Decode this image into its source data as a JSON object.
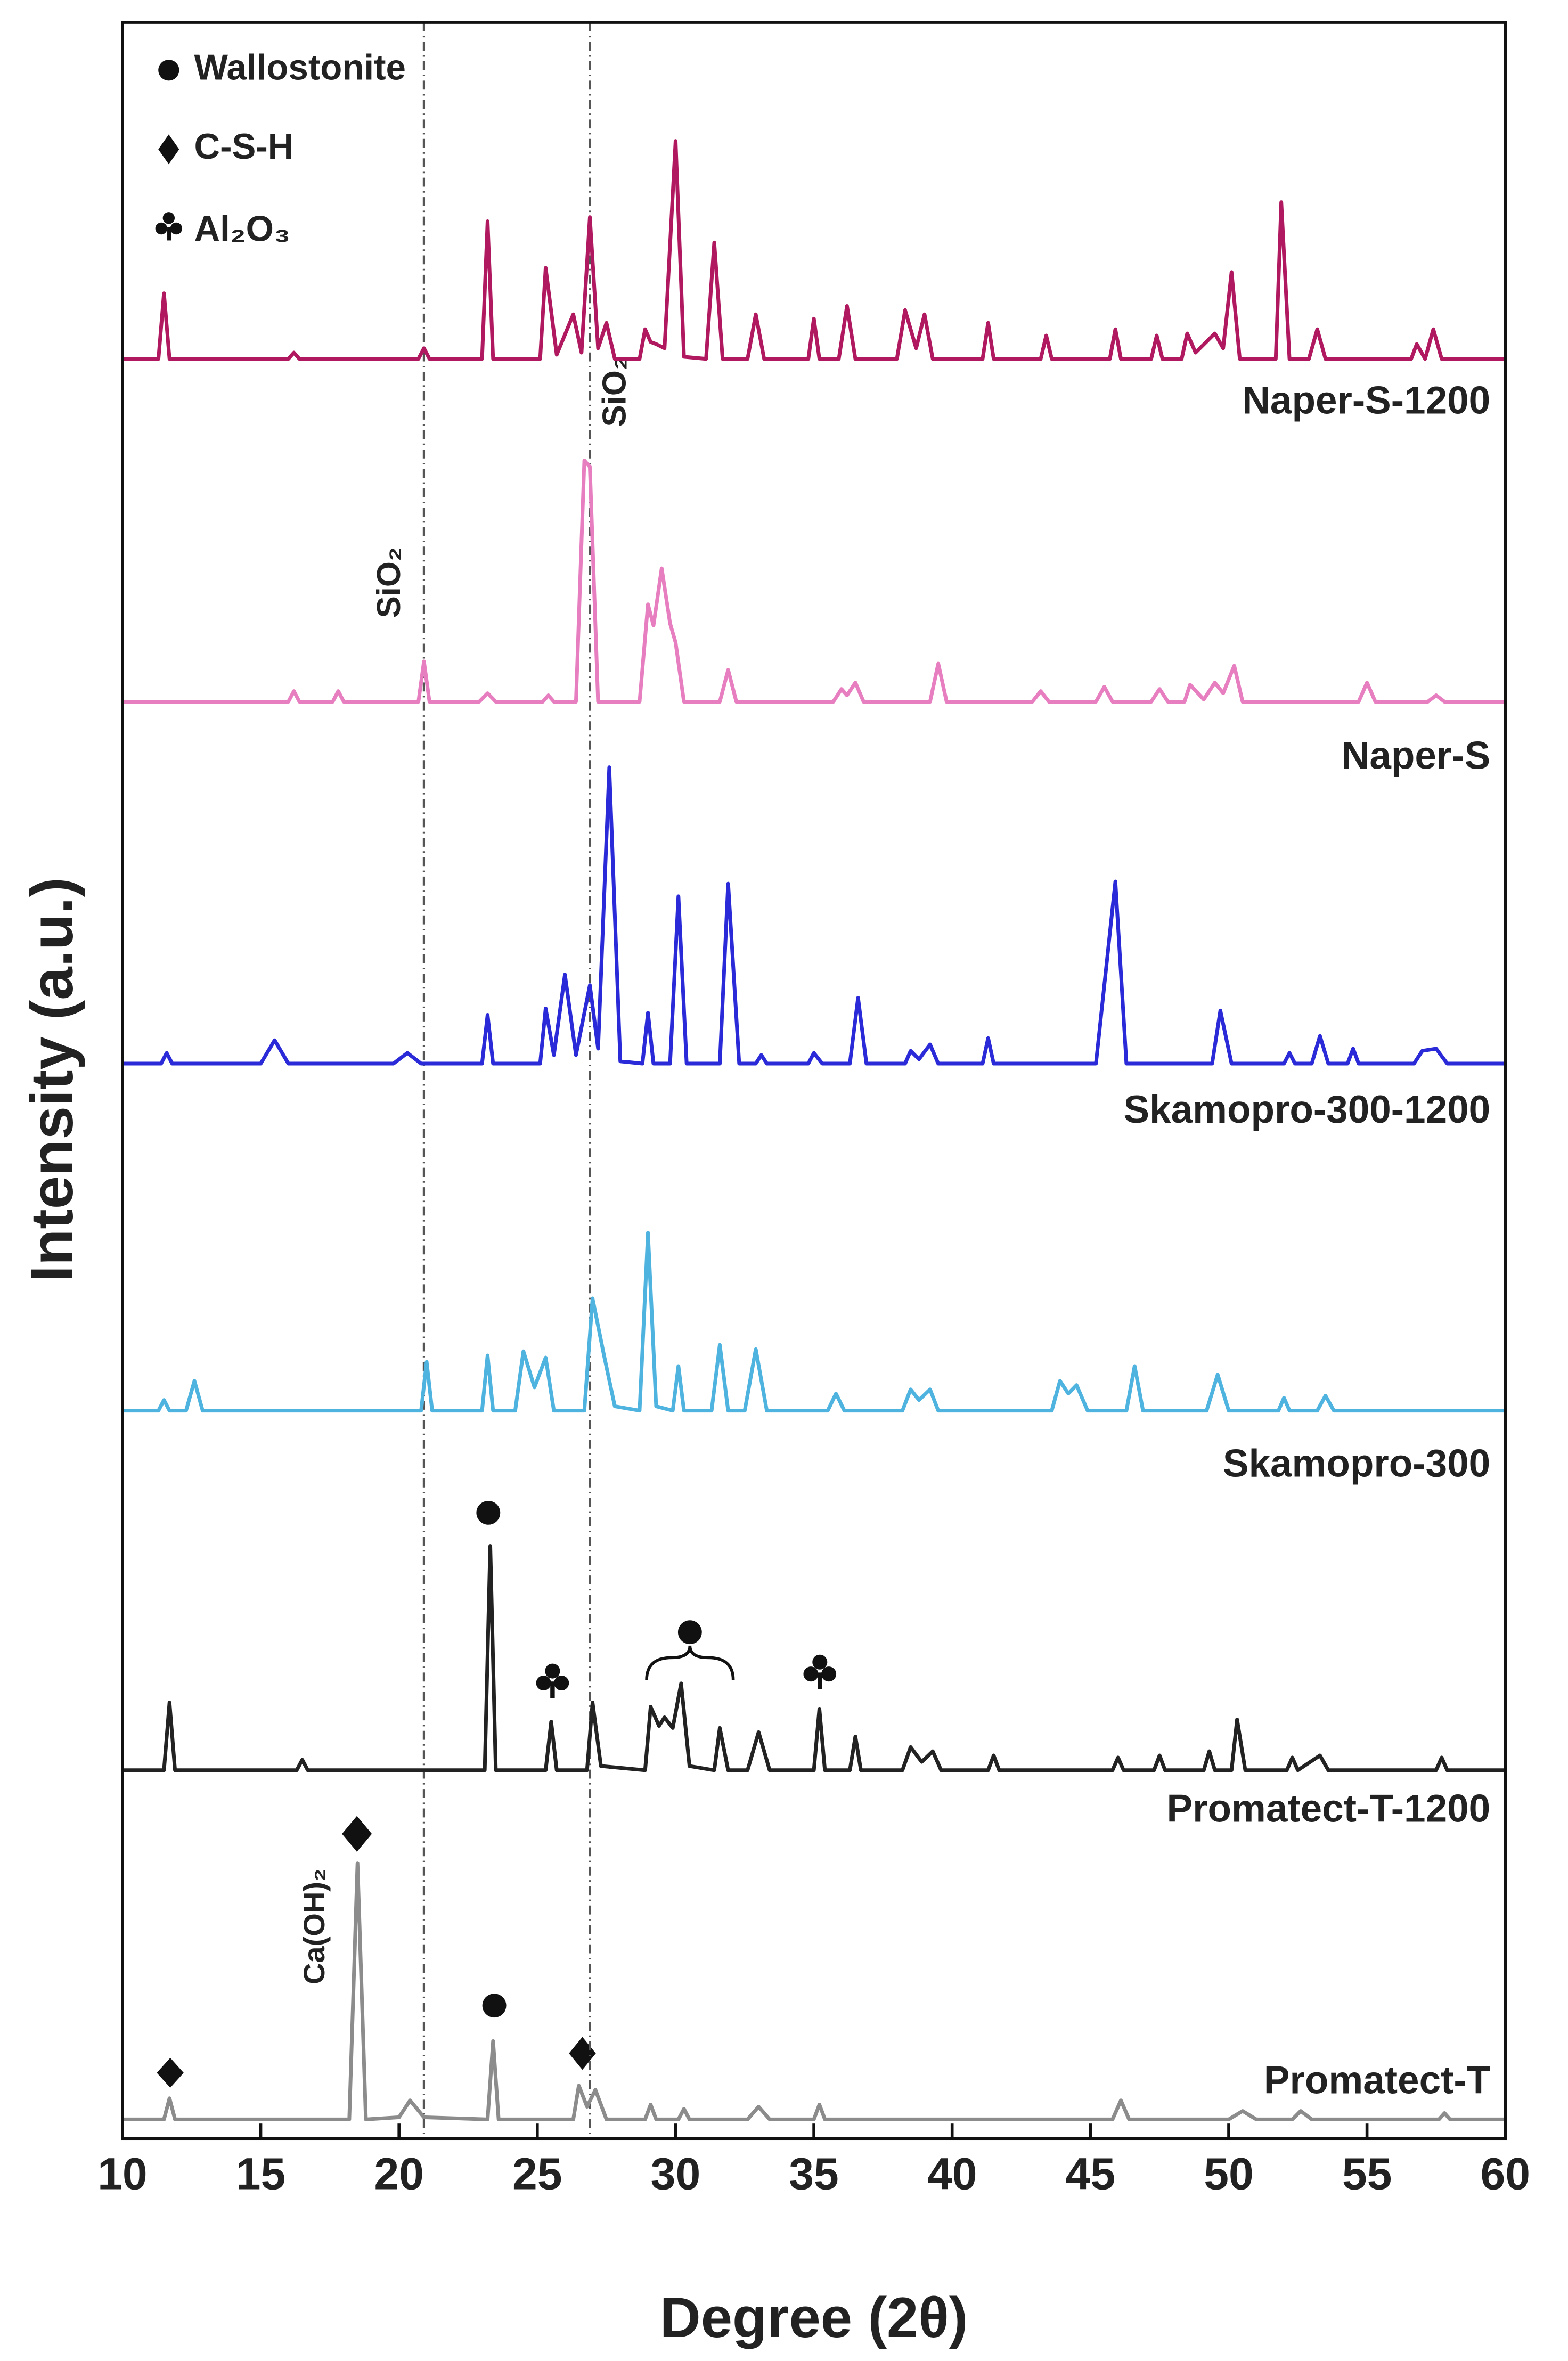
{
  "chart_data": {
    "type": "line",
    "xlabel": "Degree (2θ)",
    "ylabel": "Intensity (a.u.)",
    "xlim": [
      10,
      60
    ],
    "xticks": [
      10,
      15,
      20,
      25,
      30,
      35,
      40,
      45,
      50,
      55,
      60
    ],
    "ylim": [
      0,
      100
    ],
    "vlines": [
      20.9,
      26.9
    ],
    "phase_legend": [
      "Wallostonite",
      "C-S-H",
      "Al₂O₃"
    ],
    "annotations": [
      "SiO₂",
      "SiO₂",
      "Ca(OH)₂"
    ],
    "series": [
      {
        "name": "Naper-S-1200",
        "color": "#b0195f",
        "x": [
          10,
          11.3,
          11.5,
          11.7,
          16,
          16.2,
          16.4,
          20.7,
          20.9,
          21.1,
          23,
          23.2,
          23.4,
          25.1,
          25.3,
          25.7,
          26.3,
          26.6,
          26.9,
          27.2,
          27.5,
          27.8,
          28.7,
          28.9,
          29.1,
          29.3,
          29.6,
          30,
          30.3,
          31.1,
          31.4,
          31.7,
          32.6,
          32.9,
          33.2,
          34.8,
          35,
          35.2,
          35.9,
          36.2,
          36.5,
          38,
          38.3,
          38.7,
          39,
          39.3,
          41.1,
          41.3,
          41.5,
          43.2,
          43.4,
          43.6,
          45.7,
          45.9,
          46.1,
          47.2,
          47.4,
          47.6,
          48.3,
          48.5,
          48.8,
          49.5,
          49.8,
          50.1,
          50.4,
          51.7,
          51.9,
          52.2,
          52.9,
          53.2,
          53.5,
          56.6,
          56.8,
          57.1,
          57.4,
          57.7,
          60
        ],
        "values": [
          84.1,
          84.1,
          87.2,
          84.1,
          84.1,
          84.4,
          84.1,
          84.1,
          84.6,
          84.1,
          84.1,
          90.6,
          84.1,
          84.1,
          88.4,
          84.3,
          86.2,
          84.4,
          90.8,
          84.6,
          85.8,
          84.1,
          84.1,
          85.5,
          84.9,
          84.8,
          84.6,
          94.4,
          84.2,
          84.1,
          89.6,
          84.1,
          84.1,
          86.2,
          84.1,
          84.1,
          86.0,
          84.1,
          84.1,
          86.6,
          84.1,
          84.1,
          86.4,
          84.6,
          86.2,
          84.1,
          84.1,
          85.8,
          84.1,
          84.1,
          85.2,
          84.1,
          84.1,
          85.5,
          84.1,
          84.1,
          85.2,
          84.1,
          84.1,
          85.3,
          84.4,
          85.3,
          84.6,
          88.2,
          84.1,
          84.1,
          91.5,
          84.1,
          84.1,
          85.5,
          84.1,
          84.1,
          84.8,
          84.1,
          85.5,
          84.1,
          84.1
        ]
      },
      {
        "name": "Naper-S",
        "color": "#e77ec0",
        "x": [
          10,
          16,
          16.2,
          16.4,
          17.6,
          17.8,
          18,
          20.7,
          20.9,
          21.1,
          22.9,
          23.2,
          23.5,
          25.2,
          25.4,
          25.6,
          26.4,
          26.7,
          26.9,
          27.2,
          28.7,
          29,
          29.2,
          29.5,
          29.8,
          30,
          30.3,
          31.6,
          31.9,
          32.2,
          35.7,
          36,
          36.2,
          36.5,
          36.8,
          39.2,
          39.5,
          39.8,
          42.9,
          43.2,
          43.5,
          45.2,
          45.5,
          45.8,
          47.2,
          47.5,
          47.8,
          48.4,
          48.6,
          49.1,
          49.5,
          49.8,
          50.2,
          50.5,
          54.7,
          55,
          55.3,
          57.2,
          57.5,
          57.8,
          60
        ],
        "values": [
          67.9,
          67.9,
          68.4,
          67.9,
          67.9,
          68.4,
          67.9,
          67.9,
          69.8,
          67.9,
          67.9,
          68.3,
          67.9,
          67.9,
          68.2,
          67.9,
          67.9,
          79.3,
          79.0,
          67.9,
          67.9,
          72.5,
          71.5,
          74.2,
          71.6,
          70.7,
          67.9,
          67.9,
          69.4,
          67.9,
          67.9,
          68.5,
          68.2,
          68.8,
          67.9,
          67.9,
          69.7,
          67.9,
          67.9,
          68.4,
          67.9,
          67.9,
          68.6,
          67.9,
          67.9,
          68.5,
          67.9,
          67.9,
          68.7,
          68.0,
          68.8,
          68.3,
          69.6,
          67.9,
          67.9,
          68.8,
          67.9,
          67.9,
          68.2,
          67.9,
          67.9
        ]
      },
      {
        "name": "Skamopro-300-1200",
        "color": "#2a2ad8",
        "x": [
          10,
          11.4,
          11.6,
          11.8,
          15,
          15.5,
          16,
          19.8,
          20.3,
          20.8,
          23,
          23.2,
          23.4,
          25.1,
          25.3,
          25.6,
          26,
          26.4,
          26.9,
          27.2,
          27.6,
          28,
          28.8,
          29,
          29.2,
          29.8,
          30.1,
          30.4,
          31.6,
          31.9,
          32.3,
          32.9,
          33.1,
          33.3,
          34.8,
          35,
          35.3,
          36.3,
          36.6,
          36.9,
          38.3,
          38.5,
          38.8,
          39.2,
          39.5,
          41.1,
          41.3,
          41.5,
          45.2,
          45.5,
          45.9,
          46.3,
          49.4,
          49.7,
          50.1,
          52,
          52.2,
          52.4,
          53,
          53.3,
          53.6,
          54.3,
          54.5,
          54.7,
          56.7,
          57,
          57.5,
          57.9,
          60
        ],
        "values": [
          50.8,
          50.8,
          51.3,
          50.8,
          50.8,
          51.9,
          50.8,
          50.8,
          51.3,
          50.8,
          50.8,
          53.1,
          50.8,
          50.8,
          53.4,
          51.2,
          55.0,
          51.2,
          54.5,
          51.5,
          64.8,
          50.9,
          50.8,
          53.2,
          50.8,
          50.8,
          58.7,
          50.8,
          50.8,
          59.3,
          50.8,
          50.8,
          51.2,
          50.8,
          50.8,
          51.3,
          50.8,
          50.8,
          53.9,
          50.8,
          50.8,
          51.4,
          51.0,
          51.7,
          50.8,
          50.8,
          52.0,
          50.8,
          50.8,
          54.5,
          59.4,
          50.8,
          50.8,
          53.3,
          50.8,
          50.8,
          51.3,
          50.8,
          50.8,
          52.1,
          50.8,
          50.8,
          51.5,
          50.8,
          50.8,
          51.4,
          51.5,
          50.8,
          50.8
        ]
      },
      {
        "name": "Skamopro-300",
        "color": "#4fb3e0",
        "x": [
          10,
          11.3,
          11.5,
          11.7,
          12.3,
          12.6,
          12.9,
          20.8,
          21,
          21.2,
          23,
          23.2,
          23.4,
          24.2,
          24.5,
          24.9,
          25.3,
          25.6,
          26.7,
          27,
          27.4,
          27.8,
          28.7,
          29,
          29.3,
          29.9,
          30.1,
          30.3,
          31.3,
          31.6,
          31.9,
          32.5,
          32.9,
          33.3,
          35.5,
          35.8,
          36.1,
          38.2,
          38.5,
          38.8,
          39.2,
          39.5,
          43.6,
          43.9,
          44.2,
          44.5,
          44.9,
          46.3,
          46.6,
          46.9,
          49.2,
          49.6,
          50,
          51.8,
          52,
          52.2,
          53.2,
          53.5,
          53.8,
          60
        ],
        "values": [
          34.4,
          34.4,
          34.9,
          34.4,
          34.4,
          35.8,
          34.4,
          34.4,
          36.7,
          34.4,
          34.4,
          37.0,
          34.4,
          34.4,
          37.2,
          35.5,
          36.9,
          34.4,
          34.4,
          39.7,
          37.1,
          34.6,
          34.4,
          42.8,
          34.6,
          34.4,
          36.5,
          34.4,
          34.4,
          37.5,
          34.4,
          34.4,
          37.3,
          34.4,
          34.4,
          35.2,
          34.4,
          34.4,
          35.4,
          34.9,
          35.4,
          34.4,
          34.4,
          35.8,
          35.2,
          35.6,
          34.4,
          34.4,
          36.5,
          34.4,
          34.4,
          36.1,
          34.4,
          34.4,
          35.0,
          34.4,
          34.4,
          35.1,
          34.4,
          34.4
        ]
      },
      {
        "name": "Promatect-T-1200",
        "color": "#222222",
        "x": [
          10,
          11.5,
          11.7,
          11.9,
          16.3,
          16.5,
          16.7,
          23.1,
          23.3,
          23.5,
          25.3,
          25.5,
          25.7,
          26.8,
          27,
          27.3,
          28.9,
          29.1,
          29.4,
          29.6,
          29.9,
          30.2,
          30.5,
          31.4,
          31.6,
          31.9,
          32.6,
          33,
          33.4,
          35,
          35.2,
          35.4,
          36.3,
          36.5,
          36.7,
          38.2,
          38.5,
          38.9,
          39.3,
          39.6,
          41.3,
          41.5,
          41.7,
          45.8,
          46,
          46.2,
          47.3,
          47.5,
          47.7,
          49.1,
          49.3,
          49.5,
          50.1,
          50.3,
          50.6,
          52.1,
          52.3,
          52.5,
          53.3,
          53.6,
          57.5,
          57.7,
          57.9,
          60
        ],
        "values": [
          17.4,
          17.4,
          20.6,
          17.4,
          17.4,
          17.9,
          17.4,
          17.4,
          28.0,
          17.4,
          17.4,
          19.7,
          17.4,
          17.4,
          20.6,
          17.6,
          17.4,
          20.4,
          19.5,
          19.9,
          19.4,
          21.5,
          17.6,
          17.4,
          19.4,
          17.4,
          17.4,
          19.2,
          17.4,
          17.4,
          20.3,
          17.4,
          17.4,
          19.0,
          17.4,
          17.4,
          18.5,
          17.8,
          18.3,
          17.4,
          17.4,
          18.1,
          17.4,
          17.4,
          18.0,
          17.4,
          17.4,
          18.1,
          17.4,
          17.4,
          18.3,
          17.4,
          17.4,
          19.8,
          17.4,
          17.4,
          18.0,
          17.4,
          18.1,
          17.4,
          17.4,
          18.0,
          17.4,
          17.4
        ]
      },
      {
        "name": "Promatect-T",
        "color": "#8c8c8c",
        "x": [
          10,
          11.5,
          11.7,
          11.9,
          18.2,
          18.5,
          18.8,
          20,
          20.4,
          20.9,
          23.2,
          23.4,
          23.6,
          26.3,
          26.5,
          26.8,
          27.1,
          27.5,
          28.9,
          29.1,
          29.3,
          30.1,
          30.3,
          30.5,
          32.6,
          33,
          33.4,
          35,
          35.2,
          35.4,
          45.8,
          46.1,
          46.4,
          50,
          50.5,
          51,
          52.3,
          52.6,
          53,
          57.6,
          57.8,
          58,
          60
        ],
        "values": [
          0.9,
          0.9,
          1.9,
          0.9,
          0.9,
          13.0,
          0.9,
          1,
          1.8,
          1,
          0.9,
          4.6,
          0.9,
          0.9,
          2.5,
          1.5,
          2.3,
          0.9,
          0.9,
          1.6,
          0.9,
          0.9,
          1.4,
          0.9,
          0.9,
          1.5,
          0.9,
          0.9,
          1.6,
          0.9,
          0.9,
          1.8,
          0.9,
          0.9,
          1.3,
          0.9,
          0.9,
          1.3,
          0.9,
          0.9,
          1.2,
          0.9,
          0.9
        ]
      }
    ]
  }
}
